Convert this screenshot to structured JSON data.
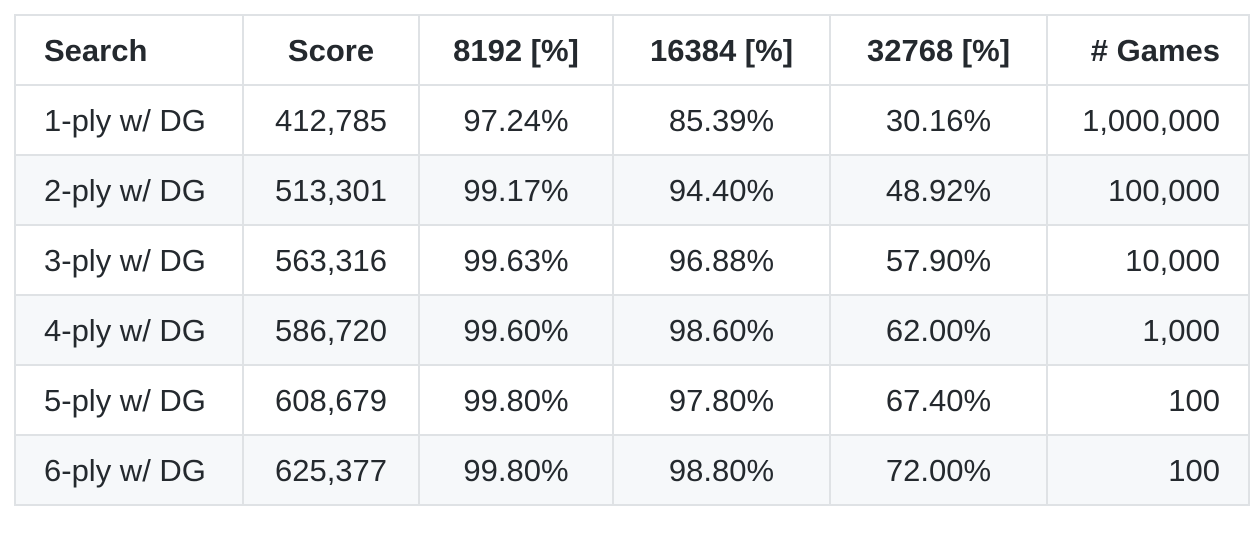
{
  "table": {
    "headers": [
      "Search",
      "Score",
      "8192 [%]",
      "16384 [%]",
      "32768 [%]",
      "# Games"
    ],
    "rows": [
      [
        "1-ply w/ DG",
        "412,785",
        "97.24%",
        "85.39%",
        "30.16%",
        "1,000,000"
      ],
      [
        "2-ply w/ DG",
        "513,301",
        "99.17%",
        "94.40%",
        "48.92%",
        "100,000"
      ],
      [
        "3-ply w/ DG",
        "563,316",
        "99.63%",
        "96.88%",
        "57.90%",
        "10,000"
      ],
      [
        "4-ply w/ DG",
        "586,720",
        "99.60%",
        "98.60%",
        "62.00%",
        "1,000"
      ],
      [
        "5-ply w/ DG",
        "608,679",
        "99.80%",
        "97.80%",
        "67.40%",
        "100"
      ],
      [
        "6-ply w/ DG",
        "625,377",
        "99.80%",
        "98.80%",
        "72.00%",
        "100"
      ]
    ]
  }
}
